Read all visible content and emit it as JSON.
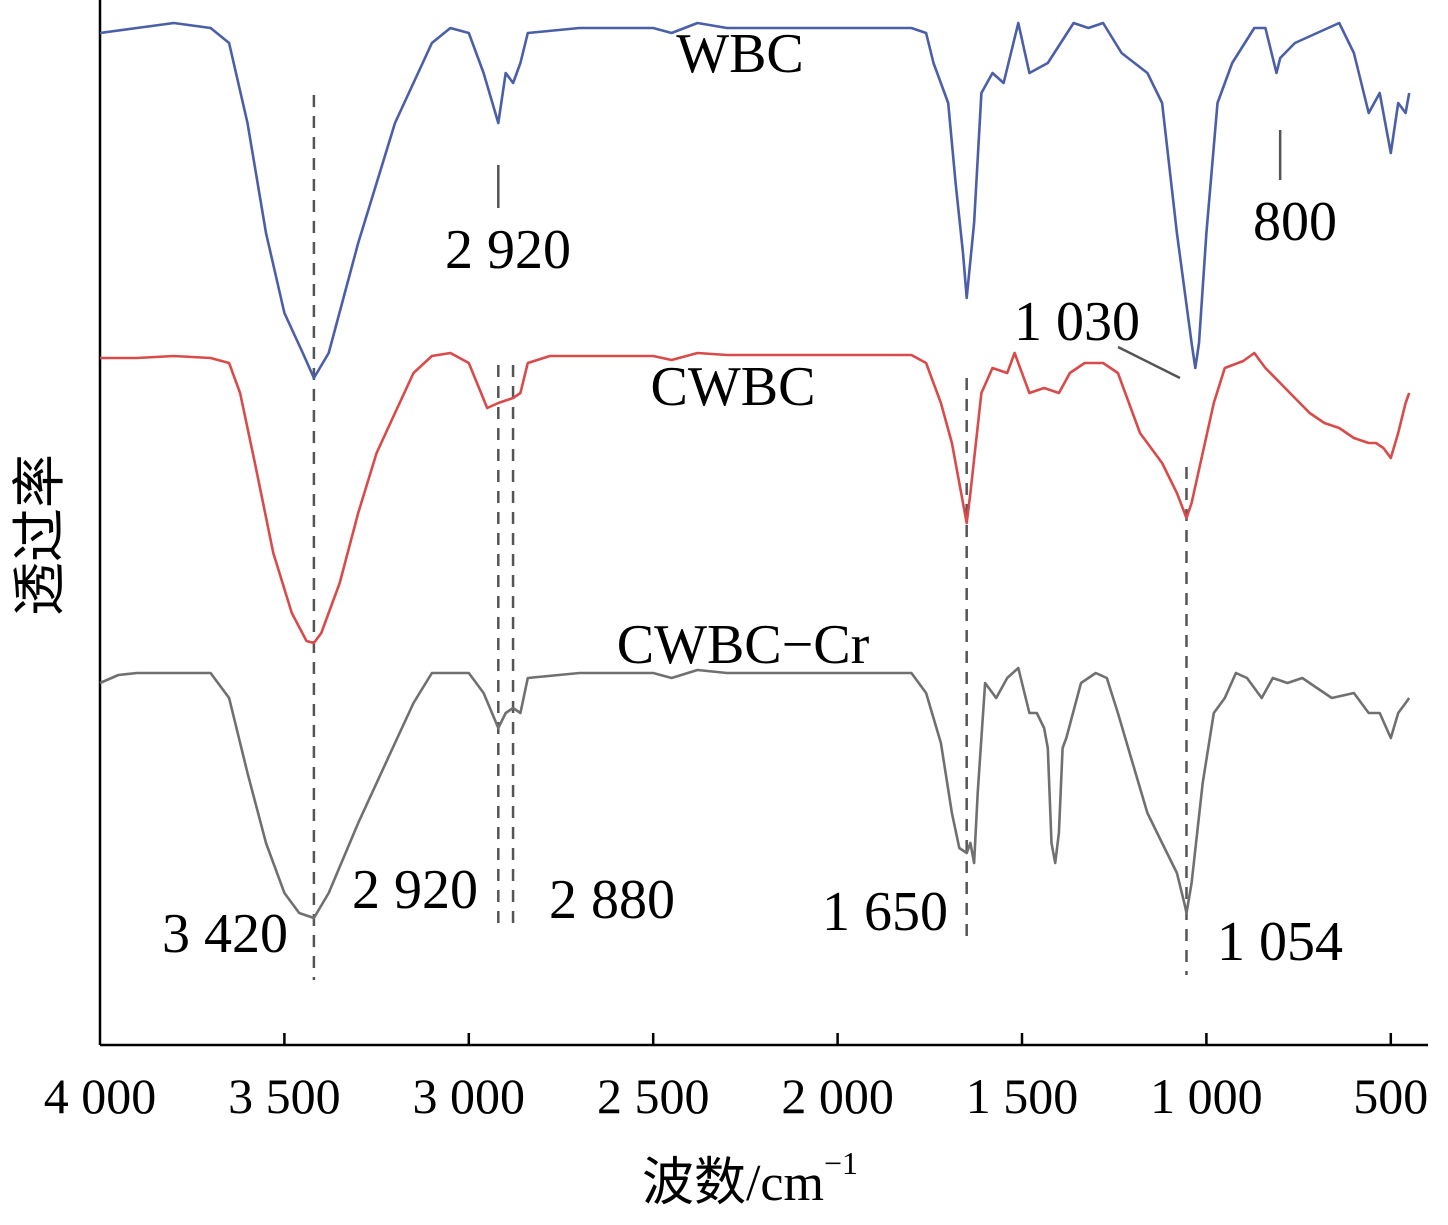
{
  "chart_data": {
    "type": "line",
    "xlabel": "波数/cm",
    "xlabel_sup": "−1",
    "ylabel": "透过率",
    "xlim": [
      4000,
      450
    ],
    "x_reversed": true,
    "y_axis_ticks": false,
    "grid": false,
    "legend": "none",
    "xticks": [
      {
        "value": 4000,
        "label": "4 000"
      },
      {
        "value": 3500,
        "label": "3 500"
      },
      {
        "value": 3000,
        "label": "3 000"
      },
      {
        "value": 2500,
        "label": "2 500"
      },
      {
        "value": 2000,
        "label": "2 000"
      },
      {
        "value": 1500,
        "label": "1 500"
      },
      {
        "value": 1000,
        "label": "1 000"
      },
      {
        "value": 500,
        "label": "500"
      }
    ],
    "series": [
      {
        "name": "WBC",
        "color": "#4a5fa8",
        "baseline_y": 6.5,
        "points": [
          [
            4000,
            6.5
          ],
          [
            3900,
            6.55
          ],
          [
            3800,
            6.6
          ],
          [
            3700,
            6.55
          ],
          [
            3650,
            6.4
          ],
          [
            3600,
            5.6
          ],
          [
            3550,
            4.5
          ],
          [
            3500,
            3.7
          ],
          [
            3450,
            3.3
          ],
          [
            3420,
            3.05
          ],
          [
            3380,
            3.3
          ],
          [
            3300,
            4.4
          ],
          [
            3200,
            5.6
          ],
          [
            3100,
            6.4
          ],
          [
            3050,
            6.55
          ],
          [
            3000,
            6.5
          ],
          [
            2960,
            6.1
          ],
          [
            2920,
            5.6
          ],
          [
            2900,
            6.1
          ],
          [
            2880,
            6.0
          ],
          [
            2860,
            6.2
          ],
          [
            2840,
            6.5
          ],
          [
            2700,
            6.55
          ],
          [
            2500,
            6.55
          ],
          [
            2450,
            6.5
          ],
          [
            2380,
            6.6
          ],
          [
            2300,
            6.55
          ],
          [
            2000,
            6.55
          ],
          [
            1800,
            6.55
          ],
          [
            1760,
            6.5
          ],
          [
            1740,
            6.2
          ],
          [
            1700,
            5.8
          ],
          [
            1680,
            5.0
          ],
          [
            1660,
            4.3
          ],
          [
            1650,
            3.85
          ],
          [
            1630,
            4.6
          ],
          [
            1610,
            5.9
          ],
          [
            1580,
            6.1
          ],
          [
            1550,
            6.0
          ],
          [
            1510,
            6.6
          ],
          [
            1480,
            6.1
          ],
          [
            1430,
            6.2
          ],
          [
            1360,
            6.6
          ],
          [
            1320,
            6.55
          ],
          [
            1280,
            6.6
          ],
          [
            1230,
            6.3
          ],
          [
            1160,
            6.1
          ],
          [
            1120,
            5.8
          ],
          [
            1080,
            4.5
          ],
          [
            1040,
            3.4
          ],
          [
            1030,
            3.15
          ],
          [
            1020,
            3.4
          ],
          [
            1000,
            4.5
          ],
          [
            970,
            5.8
          ],
          [
            930,
            6.2
          ],
          [
            870,
            6.55
          ],
          [
            840,
            6.55
          ],
          [
            810,
            6.1
          ],
          [
            800,
            6.25
          ],
          [
            760,
            6.4
          ],
          [
            700,
            6.5
          ],
          [
            640,
            6.6
          ],
          [
            600,
            6.3
          ],
          [
            560,
            5.7
          ],
          [
            530,
            5.9
          ],
          [
            510,
            5.5
          ],
          [
            500,
            5.3
          ],
          [
            480,
            5.8
          ],
          [
            460,
            5.7
          ],
          [
            450,
            5.9
          ]
        ]
      },
      {
        "name": "CWBC",
        "color": "#d94a4a",
        "baseline_y": 3.25,
        "points": [
          [
            4000,
            3.25
          ],
          [
            3900,
            3.25
          ],
          [
            3800,
            3.27
          ],
          [
            3700,
            3.25
          ],
          [
            3650,
            3.2
          ],
          [
            3620,
            2.9
          ],
          [
            3580,
            2.2
          ],
          [
            3530,
            1.3
          ],
          [
            3480,
            0.7
          ],
          [
            3440,
            0.42
          ],
          [
            3420,
            0.4
          ],
          [
            3400,
            0.5
          ],
          [
            3350,
            1.0
          ],
          [
            3300,
            1.7
          ],
          [
            3250,
            2.3
          ],
          [
            3200,
            2.7
          ],
          [
            3150,
            3.1
          ],
          [
            3100,
            3.27
          ],
          [
            3050,
            3.3
          ],
          [
            3000,
            3.2
          ],
          [
            2950,
            2.75
          ],
          [
            2920,
            2.8
          ],
          [
            2880,
            2.85
          ],
          [
            2860,
            2.9
          ],
          [
            2840,
            3.2
          ],
          [
            2780,
            3.27
          ],
          [
            2700,
            3.27
          ],
          [
            2500,
            3.27
          ],
          [
            2450,
            3.23
          ],
          [
            2380,
            3.3
          ],
          [
            2300,
            3.28
          ],
          [
            2000,
            3.28
          ],
          [
            1800,
            3.28
          ],
          [
            1760,
            3.2
          ],
          [
            1720,
            2.8
          ],
          [
            1690,
            2.4
          ],
          [
            1660,
            1.8
          ],
          [
            1650,
            1.6
          ],
          [
            1640,
            1.9
          ],
          [
            1610,
            2.9
          ],
          [
            1580,
            3.15
          ],
          [
            1540,
            3.1
          ],
          [
            1520,
            3.3
          ],
          [
            1480,
            2.9
          ],
          [
            1440,
            2.95
          ],
          [
            1400,
            2.9
          ],
          [
            1370,
            3.1
          ],
          [
            1330,
            3.2
          ],
          [
            1280,
            3.2
          ],
          [
            1240,
            3.1
          ],
          [
            1180,
            2.5
          ],
          [
            1120,
            2.2
          ],
          [
            1080,
            1.9
          ],
          [
            1054,
            1.65
          ],
          [
            1040,
            1.8
          ],
          [
            1010,
            2.3
          ],
          [
            980,
            2.8
          ],
          [
            950,
            3.15
          ],
          [
            900,
            3.22
          ],
          [
            870,
            3.3
          ],
          [
            840,
            3.15
          ],
          [
            800,
            3.0
          ],
          [
            760,
            2.85
          ],
          [
            720,
            2.7
          ],
          [
            680,
            2.6
          ],
          [
            640,
            2.55
          ],
          [
            600,
            2.45
          ],
          [
            560,
            2.4
          ],
          [
            540,
            2.4
          ],
          [
            520,
            2.35
          ],
          [
            500,
            2.25
          ],
          [
            480,
            2.5
          ],
          [
            460,
            2.8
          ],
          [
            450,
            2.9
          ]
        ]
      },
      {
        "name": "CWBC-Cr",
        "color": "#707070",
        "baseline_y": 0.0,
        "points": [
          [
            4000,
            0.0
          ],
          [
            3950,
            0.08
          ],
          [
            3900,
            0.1
          ],
          [
            3800,
            0.1
          ],
          [
            3700,
            0.1
          ],
          [
            3650,
            -0.15
          ],
          [
            3600,
            -0.9
          ],
          [
            3550,
            -1.6
          ],
          [
            3500,
            -2.1
          ],
          [
            3460,
            -2.3
          ],
          [
            3420,
            -2.35
          ],
          [
            3380,
            -2.1
          ],
          [
            3300,
            -1.4
          ],
          [
            3200,
            -0.6
          ],
          [
            3150,
            -0.2
          ],
          [
            3100,
            0.1
          ],
          [
            3000,
            0.1
          ],
          [
            2960,
            -0.1
          ],
          [
            2920,
            -0.45
          ],
          [
            2900,
            -0.3
          ],
          [
            2880,
            -0.25
          ],
          [
            2860,
            -0.3
          ],
          [
            2840,
            0.05
          ],
          [
            2700,
            0.1
          ],
          [
            2500,
            0.1
          ],
          [
            2450,
            0.05
          ],
          [
            2380,
            0.13
          ],
          [
            2300,
            0.1
          ],
          [
            2000,
            0.1
          ],
          [
            1800,
            0.1
          ],
          [
            1760,
            -0.1
          ],
          [
            1720,
            -0.6
          ],
          [
            1690,
            -1.3
          ],
          [
            1670,
            -1.65
          ],
          [
            1650,
            -1.7
          ],
          [
            1640,
            -1.6
          ],
          [
            1630,
            -1.8
          ],
          [
            1620,
            -1.1
          ],
          [
            1600,
            0.0
          ],
          [
            1570,
            -0.15
          ],
          [
            1540,
            0.05
          ],
          [
            1510,
            0.15
          ],
          [
            1480,
            -0.3
          ],
          [
            1460,
            -0.3
          ],
          [
            1440,
            -0.45
          ],
          [
            1430,
            -0.65
          ],
          [
            1420,
            -1.6
          ],
          [
            1410,
            -1.8
          ],
          [
            1400,
            -1.5
          ],
          [
            1390,
            -0.65
          ],
          [
            1380,
            -0.55
          ],
          [
            1340,
            0.0
          ],
          [
            1300,
            0.1
          ],
          [
            1270,
            0.05
          ],
          [
            1240,
            -0.3
          ],
          [
            1200,
            -0.8
          ],
          [
            1160,
            -1.3
          ],
          [
            1120,
            -1.6
          ],
          [
            1080,
            -1.9
          ],
          [
            1060,
            -2.2
          ],
          [
            1054,
            -2.3
          ],
          [
            1040,
            -2.0
          ],
          [
            1010,
            -1.0
          ],
          [
            980,
            -0.3
          ],
          [
            950,
            -0.15
          ],
          [
            920,
            0.1
          ],
          [
            890,
            0.05
          ],
          [
            850,
            -0.15
          ],
          [
            820,
            0.05
          ],
          [
            780,
            0.0
          ],
          [
            740,
            0.05
          ],
          [
            700,
            -0.05
          ],
          [
            660,
            -0.15
          ],
          [
            600,
            -0.1
          ],
          [
            560,
            -0.3
          ],
          [
            530,
            -0.3
          ],
          [
            500,
            -0.55
          ],
          [
            480,
            -0.3
          ],
          [
            460,
            -0.2
          ],
          [
            450,
            -0.15
          ]
        ]
      }
    ],
    "series_labels": [
      "WBC",
      "CWBC",
      "CWBC−Cr"
    ],
    "reference_lines": [
      {
        "x": 3420,
        "label": "3 420"
      },
      {
        "x": 2920,
        "label": "2 920"
      },
      {
        "x": 2880,
        "label": "2 880"
      },
      {
        "x": 1650,
        "label": "1 650"
      },
      {
        "x": 1054,
        "label": "1 054"
      }
    ],
    "peak_annotations": [
      {
        "x": 2920,
        "label": "2 920"
      },
      {
        "x": 1030,
        "label": "1 030"
      },
      {
        "x": 800,
        "label": "800"
      }
    ]
  }
}
